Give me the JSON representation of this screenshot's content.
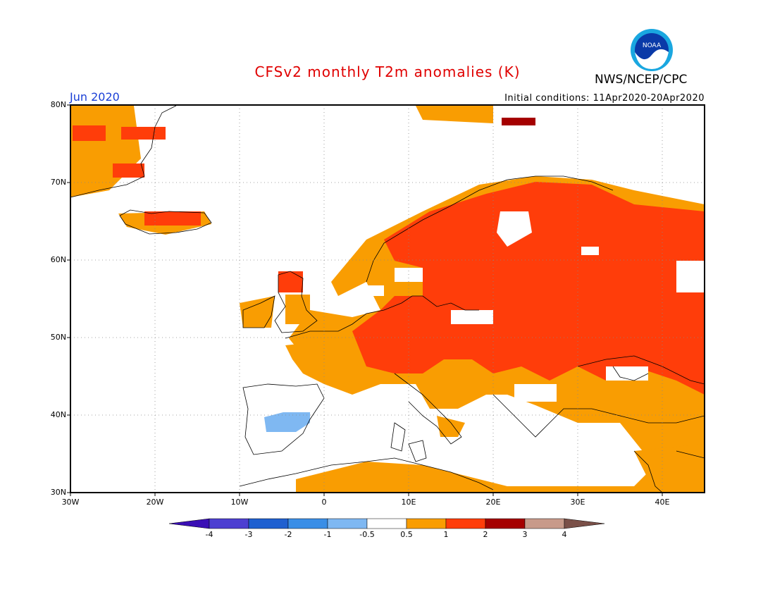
{
  "header": {
    "title": "CFSv2 monthly T2m anomalies (K)",
    "month": "Jun 2020",
    "initial_conditions": "Initial conditions: 11Apr2020-20Apr2020",
    "agency": "NWS/NCEP/CPC",
    "logo_text": "NOAA"
  },
  "map": {
    "lon_range": [
      -30,
      45
    ],
    "lat_range": [
      30,
      80
    ],
    "lat_labels": [
      "80N",
      "70N",
      "60N",
      "50N",
      "40N",
      "30N"
    ],
    "lon_labels": [
      "30W",
      "20W",
      "10W",
      "0",
      "10E",
      "20E",
      "30E",
      "40E"
    ],
    "grid": "dotted"
  },
  "colorbar": {
    "labels": [
      "-4",
      "-3",
      "-2",
      "-1",
      "-0.5",
      "0.5",
      "1",
      "2",
      "3",
      "4"
    ],
    "colors": [
      "#3a0fb5",
      "#4d3fd1",
      "#1f60d0",
      "#3a8ee6",
      "#7fb8f2",
      "#ffffff",
      "#f99d02",
      "#ff3d0a",
      "#a50000",
      "#c89a8a",
      "#7a5048"
    ]
  }
}
